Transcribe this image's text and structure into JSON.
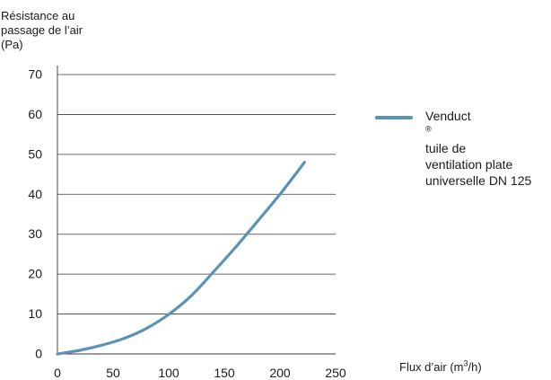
{
  "chart_data": {
    "type": "line",
    "ylabel_lines": [
      "Résistance au",
      "passage de l’air",
      "(Pa)"
    ],
    "xlabel": {
      "prefix": "Flux d’air (m",
      "sup": "3",
      "suffix": "/h)"
    },
    "xlim": [
      0,
      250
    ],
    "ylim": [
      0,
      70
    ],
    "xticks": [
      0,
      50,
      100,
      150,
      200,
      250
    ],
    "yticks": [
      0,
      10,
      20,
      30,
      40,
      50,
      60,
      70
    ],
    "grid": "horizontal",
    "legend_position": "right",
    "series": [
      {
        "name_parts": {
          "prefix": "Venduct",
          "sup": "®",
          "lines": [
            " tuile de",
            "ventilation plate",
            "universelle DN 125"
          ]
        },
        "color": "#5b93b8",
        "x": [
          0,
          20,
          40,
          60,
          80,
          100,
          120,
          140,
          160,
          180,
          200,
          222
        ],
        "y": [
          0,
          0.9,
          2.2,
          3.9,
          6.4,
          9.9,
          14.5,
          20.5,
          26.7,
          33.3,
          40.0,
          48.0
        ]
      }
    ]
  }
}
